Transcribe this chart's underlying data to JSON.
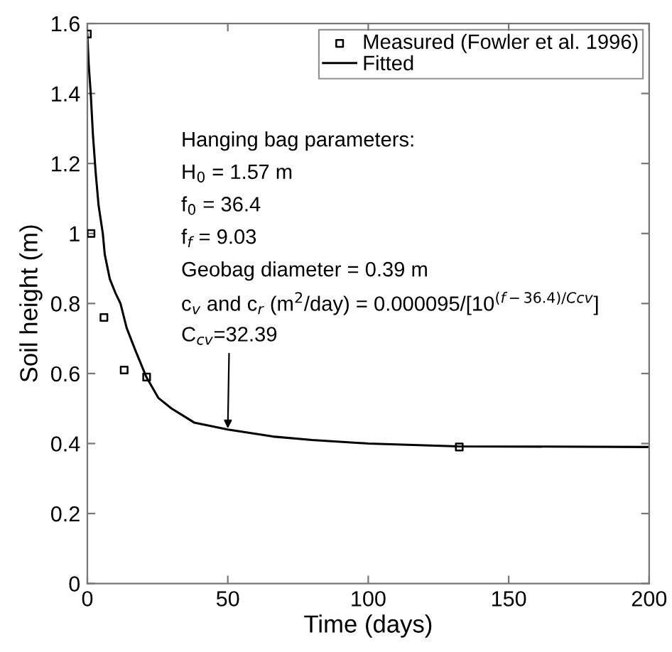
{
  "chart_data": {
    "type": "scatter",
    "xlabel": "Time (days)",
    "ylabel": "Soil height (m)",
    "xlim": [
      0,
      200
    ],
    "ylim": [
      0,
      1.6
    ],
    "xticks": [
      0,
      50,
      100,
      150,
      200
    ],
    "yticks": [
      0,
      0.2,
      0.4,
      0.6,
      0.8,
      1,
      1.2,
      1.4,
      1.6
    ],
    "grid": false,
    "legend": "top right",
    "series": [
      {
        "name": "Measured (Fowler et al. 1996)",
        "marker": "square",
        "color": "#000000",
        "x": [
          0,
          1.3,
          5.9,
          13.1,
          21.1,
          132.4
        ],
        "values": [
          1.57,
          1.0,
          0.76,
          0.61,
          0.59,
          0.39
        ]
      },
      {
        "name": "Fitted",
        "type": "line",
        "marker": "none",
        "line_style": "solid",
        "color": "#000000",
        "x": [
          0,
          0.5,
          1.2,
          2,
          3,
          4,
          5.5,
          6.2,
          8,
          10,
          11.8,
          14,
          16.9,
          21,
          25.3,
          30,
          38,
          50,
          66,
          80,
          100,
          132,
          200
        ],
        "values": [
          1.57,
          1.48,
          1.4,
          1.28,
          1.17,
          1.08,
          1.0,
          0.94,
          0.87,
          0.83,
          0.8,
          0.73,
          0.67,
          0.59,
          0.53,
          0.5,
          0.46,
          0.44,
          0.42,
          0.41,
          0.4,
          0.392,
          0.39
        ]
      }
    ],
    "annotations": [
      "Hanging bag parameters:",
      "H$_{0}$ = 1.57 m",
      "f$_{0}$ = 36.4",
      "f$_{f}$ = 9.03",
      "Geobag diameter = 0.39 m",
      "c$_{v}$ and c$_{r}$ (m$^{2}$/day) = 0.000095/[10$^{(f−36.4)/Ccv}$]",
      {
        "text": "C$_{cv}$=32.39",
        "x": 50,
        "y": 0.443
      }
    ]
  }
}
